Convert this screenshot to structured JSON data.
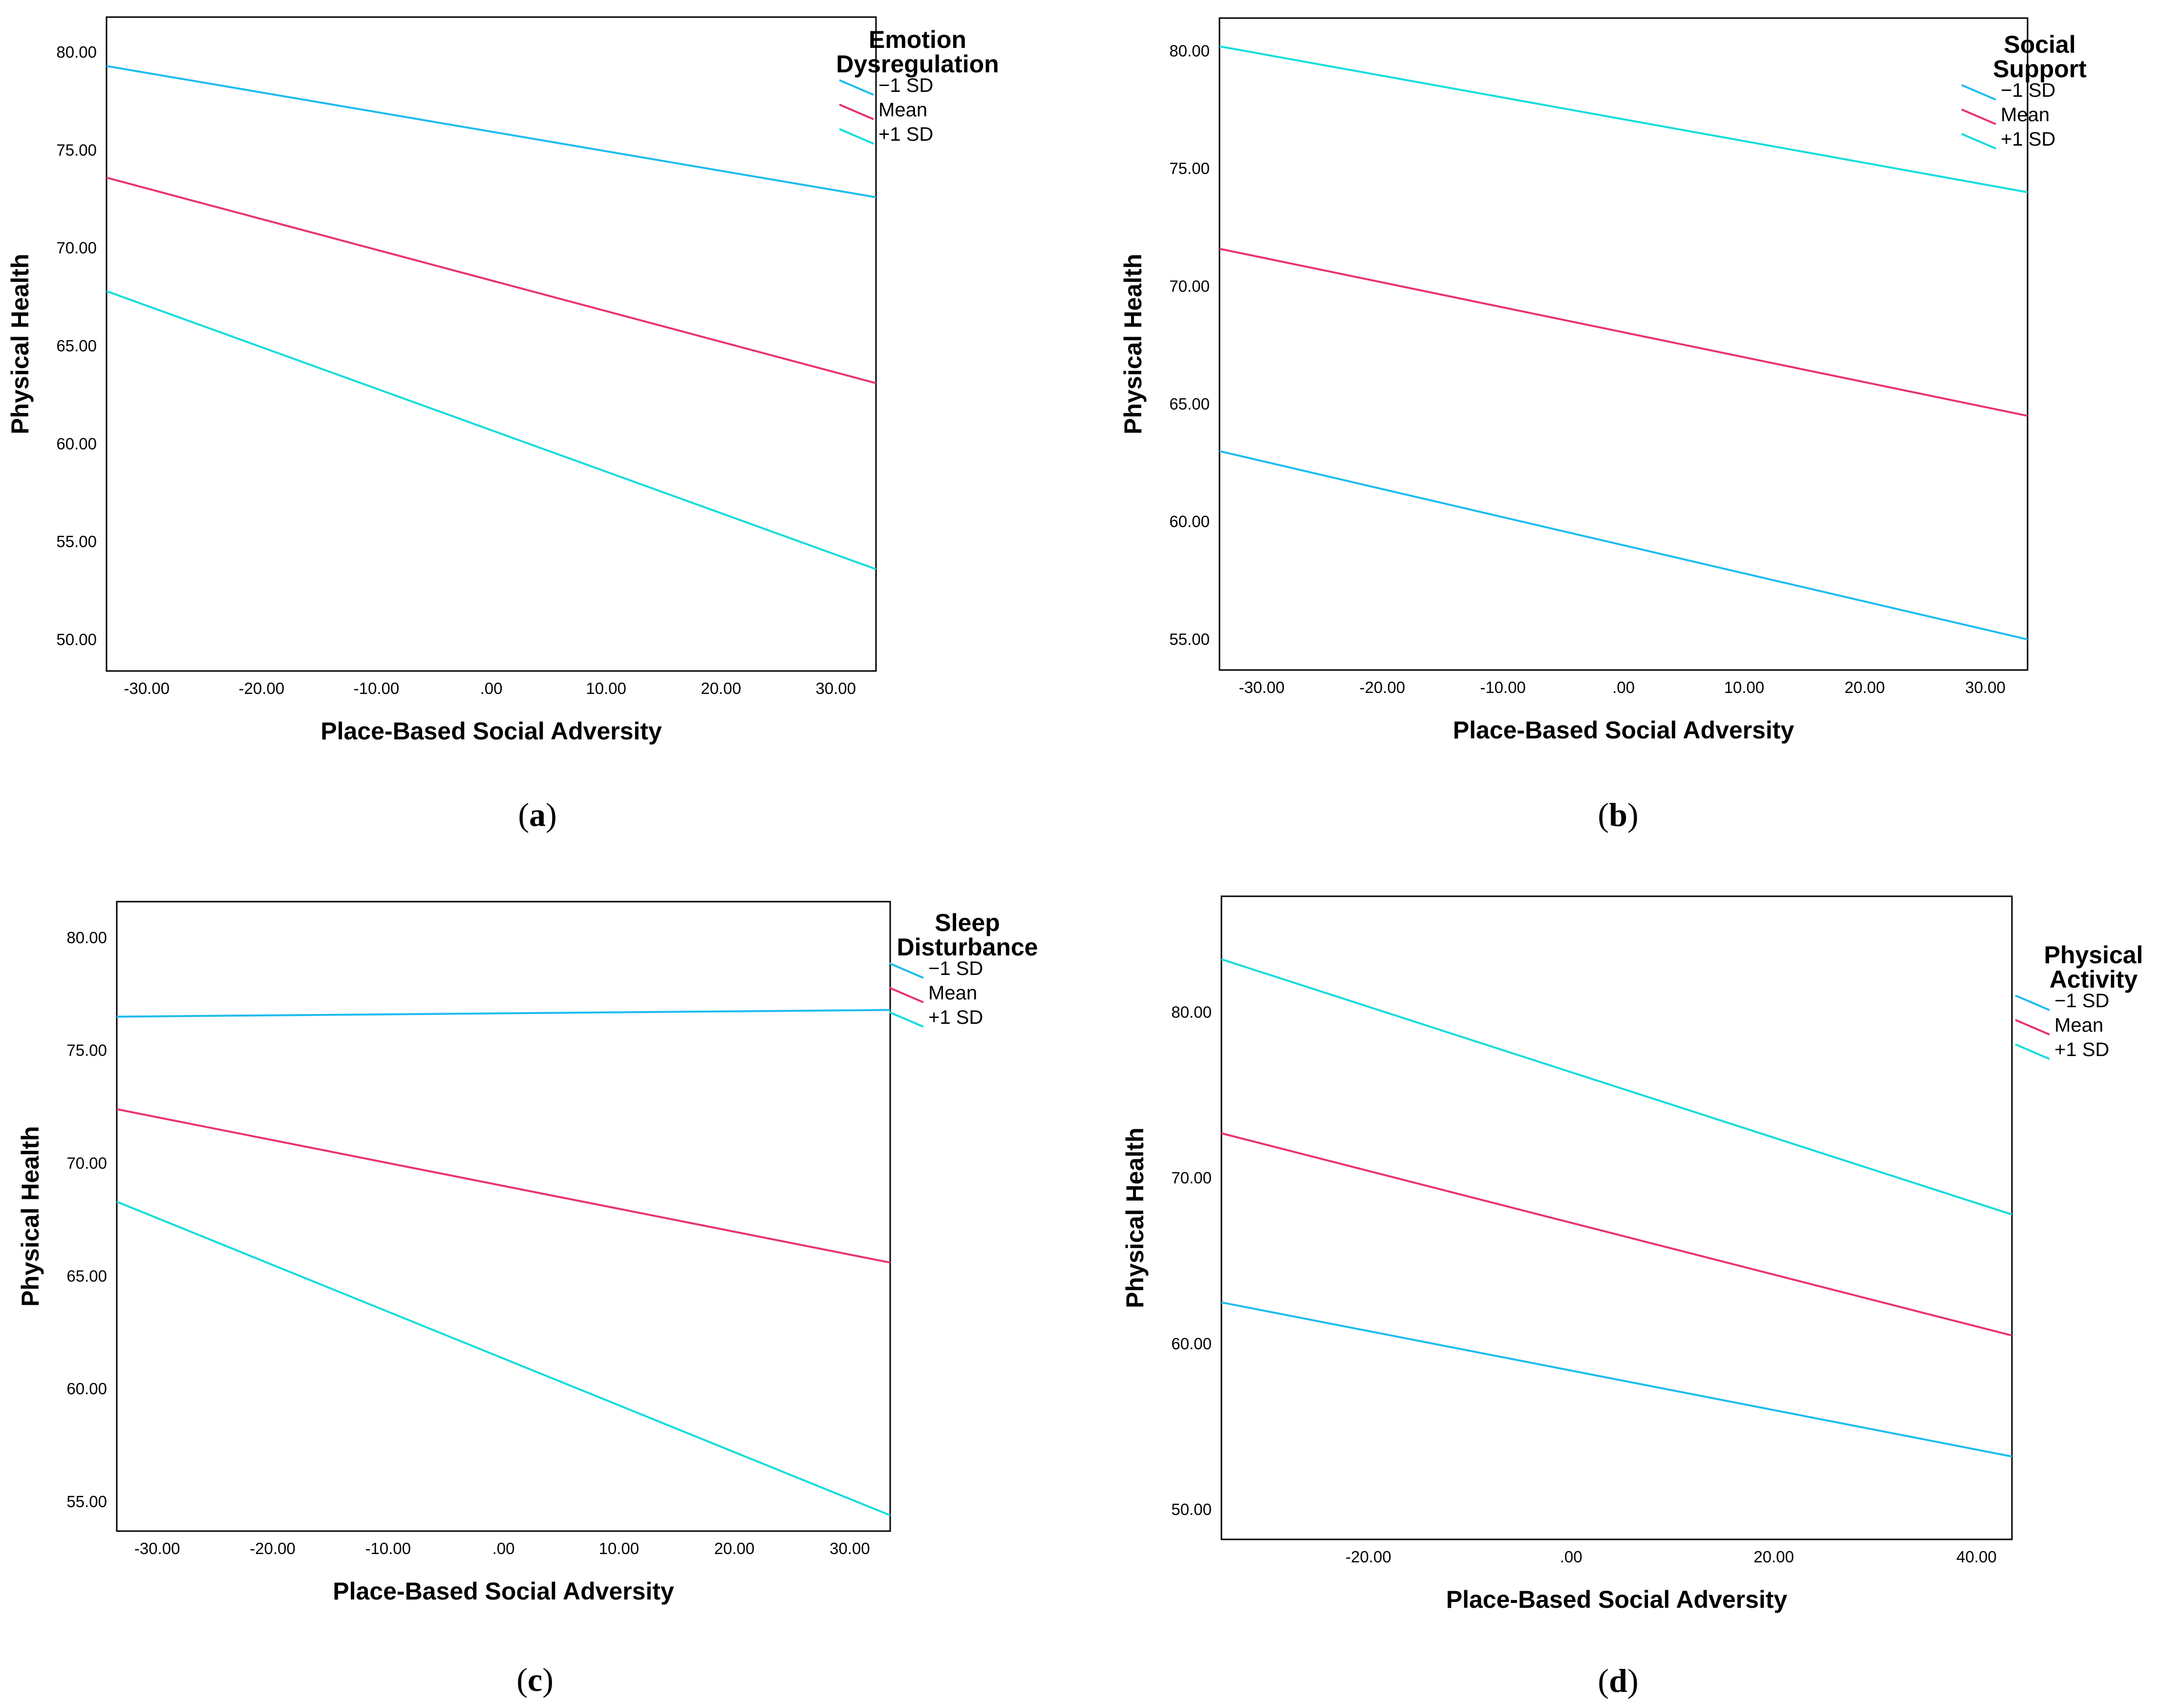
{
  "figure": {
    "panels": [
      {
        "caption_letter": "a",
        "caption_open": "(",
        "caption_close": ")",
        "legend_title_lines": [
          "Emotion",
          "Dysregulation"
        ]
      },
      {
        "caption_letter": "b",
        "caption_open": "(",
        "caption_close": ")",
        "legend_title_lines": [
          "Social",
          "Support"
        ]
      },
      {
        "caption_letter": "c",
        "caption_open": "(",
        "caption_close": ")",
        "legend_title_lines": [
          "Sleep",
          "Disturbance"
        ]
      },
      {
        "caption_letter": "d",
        "caption_open": "(",
        "caption_close": ")",
        "legend_title_lines": [
          "Physical",
          "Activity"
        ]
      }
    ]
  },
  "chart_data": [
    {
      "type": "line",
      "panel": "a",
      "title": "",
      "xlabel": "Place-Based Social Adversity",
      "ylabel": "Physical Health",
      "legend_title": "Emotion Dysregulation",
      "legend_position": "right",
      "xlim": [
        -33.5,
        33.5
      ],
      "ylim": [
        48.4,
        81.8
      ],
      "x_ticks": [
        -30,
        -20,
        -10,
        0,
        10,
        20,
        30
      ],
      "x_tick_labels": [
        "-30.00",
        "-20.00",
        "-10.00",
        ".00",
        "10.00",
        "20.00",
        "30.00"
      ],
      "y_ticks": [
        50,
        55,
        60,
        65,
        70,
        75,
        80
      ],
      "y_tick_labels": [
        "50.00",
        "55.00",
        "60.00",
        "65.00",
        "70.00",
        "75.00",
        "80.00"
      ],
      "x": [
        -33.5,
        33.5
      ],
      "series": [
        {
          "name": "−1 SD",
          "color": "#1ebcf0",
          "values": [
            79.3,
            72.6
          ]
        },
        {
          "name": "Mean",
          "color": "#e8336b",
          "values": [
            73.6,
            63.1
          ]
        },
        {
          "name": "+1 SD",
          "color": "#14dcdc",
          "values": [
            67.8,
            53.6
          ]
        }
      ]
    },
    {
      "type": "line",
      "panel": "b",
      "title": "",
      "xlabel": "Place-Based Social Adversity",
      "ylabel": "Physical Health",
      "legend_title": "Social Support",
      "legend_position": "right",
      "xlim": [
        -33.5,
        33.5
      ],
      "ylim": [
        53.7,
        81.4
      ],
      "x_ticks": [
        -30,
        -20,
        -10,
        0,
        10,
        20,
        30
      ],
      "x_tick_labels": [
        "-30.00",
        "-20.00",
        "-10.00",
        ".00",
        "10.00",
        "20.00",
        "30.00"
      ],
      "y_ticks": [
        55,
        60,
        65,
        70,
        75,
        80
      ],
      "y_tick_labels": [
        "55.00",
        "60.00",
        "65.00",
        "70.00",
        "75.00",
        "80.00"
      ],
      "x": [
        -33.5,
        33.5
      ],
      "series": [
        {
          "name": "−1 SD",
          "color": "#1ebcf0",
          "values": [
            63.0,
            55.0
          ]
        },
        {
          "name": "Mean",
          "color": "#e8336b",
          "values": [
            71.6,
            64.5
          ]
        },
        {
          "name": "+1 SD",
          "color": "#14dcdc",
          "values": [
            80.2,
            74.0
          ]
        }
      ]
    },
    {
      "type": "line",
      "panel": "c",
      "title": "",
      "xlabel": "Place-Based Social Adversity",
      "ylabel": "Physical Health",
      "legend_title": "Sleep Disturbance",
      "legend_position": "right",
      "xlim": [
        -33.5,
        33.5
      ],
      "ylim": [
        53.7,
        81.6
      ],
      "x_ticks": [
        -30,
        -20,
        -10,
        0,
        10,
        20,
        30
      ],
      "x_tick_labels": [
        "-30.00",
        "-20.00",
        "-10.00",
        ".00",
        "10.00",
        "20.00",
        "30.00"
      ],
      "y_ticks": [
        55,
        60,
        65,
        70,
        75,
        80
      ],
      "y_tick_labels": [
        "55.00",
        "60.00",
        "65.00",
        "70.00",
        "75.00",
        "80.00"
      ],
      "x": [
        -33.5,
        33.5
      ],
      "series": [
        {
          "name": "−1 SD",
          "color": "#1ebcf0",
          "values": [
            76.5,
            76.8
          ]
        },
        {
          "name": "Mean",
          "color": "#e8336b",
          "values": [
            72.4,
            65.6
          ]
        },
        {
          "name": "+1 SD",
          "color": "#14dcdc",
          "values": [
            68.3,
            54.4
          ]
        }
      ]
    },
    {
      "type": "line",
      "panel": "d",
      "title": "",
      "xlabel": "Place-Based Social Adversity",
      "ylabel": "Physical Health",
      "legend_title": "Physical Activity",
      "legend_position": "right",
      "xlim": [
        -34.5,
        43.5
      ],
      "ylim": [
        48.2,
        87.0
      ],
      "x_ticks": [
        -20,
        0,
        20,
        40
      ],
      "x_tick_labels": [
        "-20.00",
        ".00",
        "20.00",
        "40.00"
      ],
      "y_ticks": [
        50,
        60,
        70,
        80
      ],
      "y_tick_labels": [
        "50.00",
        "60.00",
        "70.00",
        "80.00"
      ],
      "x": [
        -34.5,
        43.5
      ],
      "series": [
        {
          "name": "−1 SD",
          "color": "#1ebcf0",
          "values": [
            62.5,
            53.2
          ]
        },
        {
          "name": "Mean",
          "color": "#e8336b",
          "values": [
            72.7,
            60.5
          ]
        },
        {
          "name": "+1 SD",
          "color": "#14dcdc",
          "values": [
            83.2,
            67.8
          ]
        }
      ]
    }
  ]
}
